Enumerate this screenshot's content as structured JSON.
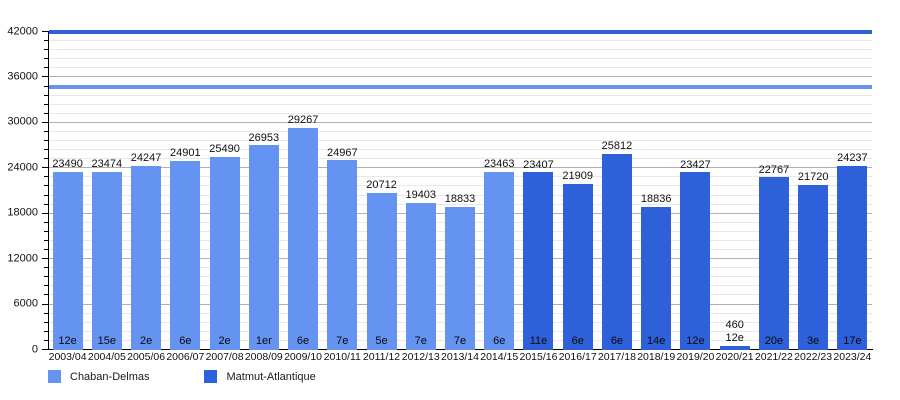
{
  "chart_data": {
    "type": "bar",
    "title": "",
    "categories": [
      "2003/04",
      "2004/05",
      "2005/06",
      "2006/07",
      "2007/08",
      "2008/09",
      "2009/10",
      "2010/11",
      "2011/12",
      "2012/13",
      "2013/14",
      "2014/15",
      "2015/16",
      "2016/17",
      "2017/18",
      "2018/19",
      "2019/20",
      "2020/21",
      "2021/22",
      "2022/23",
      "2023/24"
    ],
    "values": [
      23490,
      23474,
      24247,
      24901,
      25490,
      26953,
      29267,
      24967,
      20712,
      19403,
      18833,
      23463,
      23407,
      21909,
      25812,
      18836,
      23427,
      460,
      22767,
      21720,
      24237
    ],
    "ranks": [
      "12e",
      "15e",
      "2e",
      "6e",
      "2e",
      "1er",
      "6e",
      "7e",
      "5e",
      "7e",
      "7e",
      "6e",
      "11e",
      "6e",
      "6e",
      "14e",
      "12e",
      "12e",
      "20e",
      "3e",
      "17e"
    ],
    "bar_series": [
      "Chaban-Delmas",
      "Chaban-Delmas",
      "Chaban-Delmas",
      "Chaban-Delmas",
      "Chaban-Delmas",
      "Chaban-Delmas",
      "Chaban-Delmas",
      "Chaban-Delmas",
      "Chaban-Delmas",
      "Chaban-Delmas",
      "Chaban-Delmas",
      "Chaban-Delmas",
      "Matmut-Atlantique",
      "Matmut-Atlantique",
      "Matmut-Atlantique",
      "Matmut-Atlantique",
      "Matmut-Atlantique",
      "Matmut-Atlantique",
      "Matmut-Atlantique",
      "Matmut-Atlantique",
      "Matmut-Atlantique"
    ],
    "legend": [
      {
        "label": "Chaban-Delmas",
        "color": "#6493f2"
      },
      {
        "label": "Matmut-Atlantique",
        "color": "#2e60d9"
      }
    ],
    "reference_lines": [
      {
        "value": 42000,
        "color": "#2e60d9"
      },
      {
        "value": 34700,
        "color": "#6493f2"
      }
    ],
    "ylim": [
      0,
      42000
    ],
    "y_major_step": 6000,
    "y_minor_step": 1200,
    "y_tick_labels": [
      "0",
      "6000",
      "12000",
      "18000",
      "24000",
      "30000",
      "36000",
      "42000"
    ],
    "grid": true,
    "legend_position": "bottom"
  }
}
